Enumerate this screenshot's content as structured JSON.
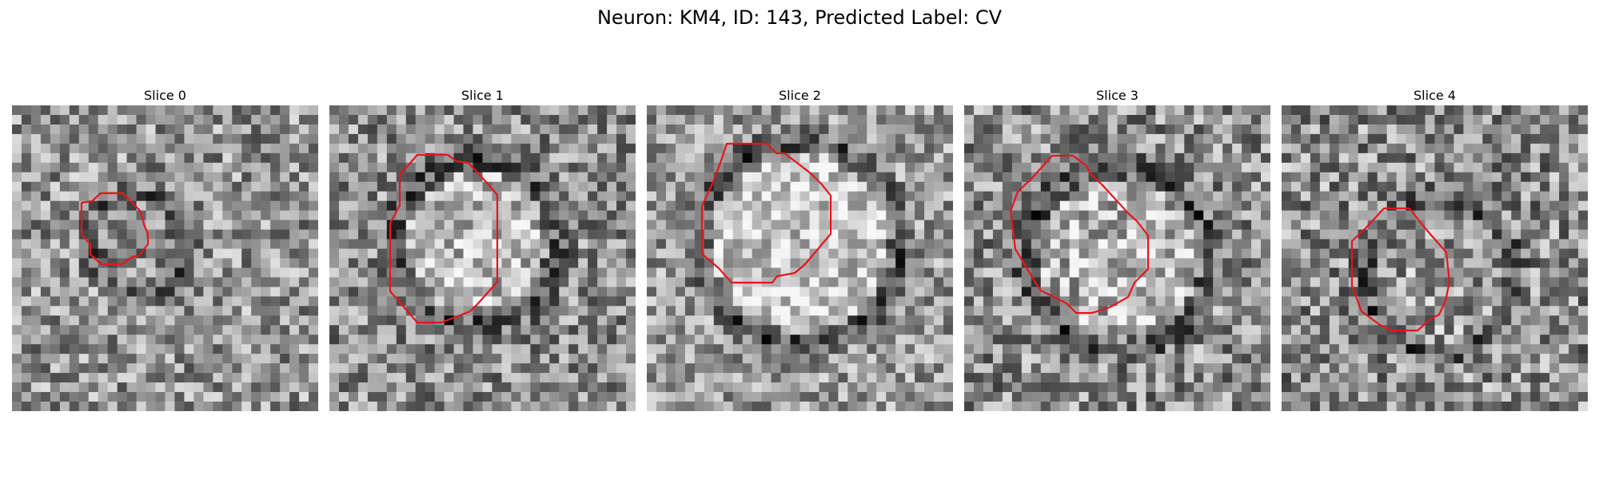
{
  "figure": {
    "title": "Neuron: KM4, ID: 143, Predicted Label: CV"
  },
  "slices": [
    {
      "label": "Slice 0",
      "contour_color": "#e8141c"
    },
    {
      "label": "Slice 1",
      "contour_color": "#e8141c"
    },
    {
      "label": "Slice 2",
      "contour_color": "#e8141c"
    },
    {
      "label": "Slice 3",
      "contour_color": "#e8141c"
    },
    {
      "label": "Slice 4",
      "contour_color": "#e8141c"
    }
  ]
}
